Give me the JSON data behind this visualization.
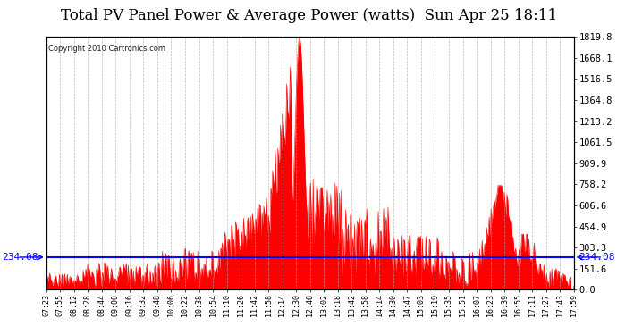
{
  "title": "Total PV Panel Power & Average Power (watts)  Sun Apr 25 18:11",
  "copyright": "Copyright 2010 Cartronics.com",
  "average_power": 234.08,
  "y_max": 1819.8,
  "y_min": 0.0,
  "y_ticks": [
    0.0,
    151.6,
    303.3,
    454.9,
    606.6,
    758.2,
    909.9,
    1061.5,
    1213.2,
    1364.8,
    1516.5,
    1668.1,
    1819.8
  ],
  "x_labels": [
    "07:23",
    "07:55",
    "08:12",
    "08:28",
    "08:44",
    "09:00",
    "09:16",
    "09:32",
    "09:48",
    "10:06",
    "10:22",
    "10:38",
    "10:54",
    "11:10",
    "11:26",
    "11:42",
    "11:58",
    "12:14",
    "12:30",
    "12:46",
    "13:02",
    "13:18",
    "13:42",
    "13:58",
    "14:14",
    "14:30",
    "14:47",
    "15:03",
    "15:19",
    "15:35",
    "15:51",
    "16:07",
    "16:23",
    "16:39",
    "16:55",
    "17:11",
    "17:27",
    "17:43",
    "17:59"
  ],
  "background_color": "#ffffff",
  "plot_bg_color": "#ffffff",
  "line_color": "#0000ff",
  "fill_color": "#ff0000",
  "grid_color": "#aaaaaa",
  "title_fontsize": 12,
  "avg_label_color": "#0000ff",
  "avg_label_fontsize": 8
}
